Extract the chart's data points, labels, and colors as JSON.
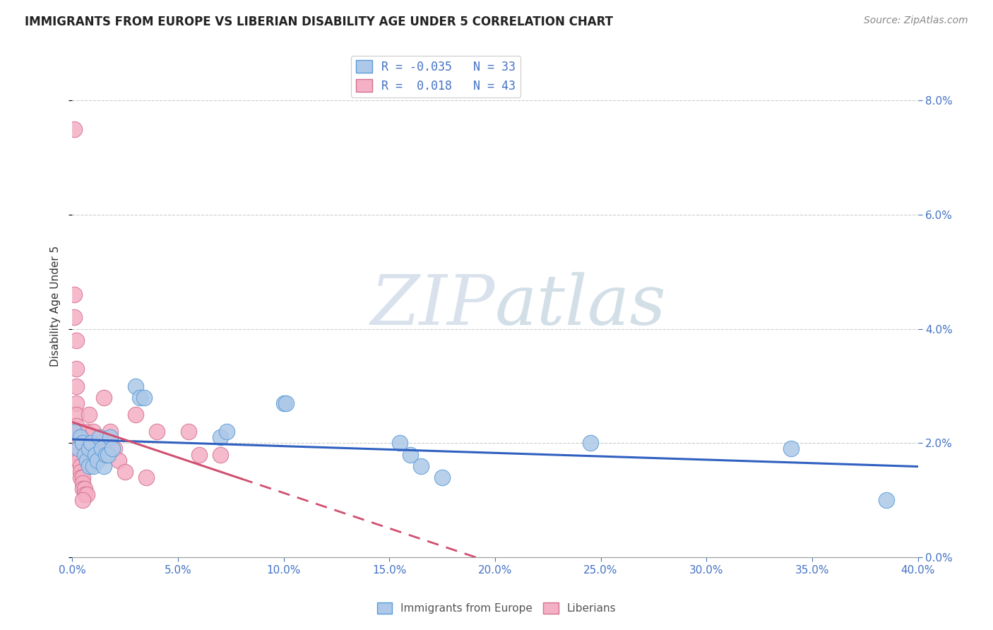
{
  "title": "IMMIGRANTS FROM EUROPE VS LIBERIAN DISABILITY AGE UNDER 5 CORRELATION CHART",
  "source": "Source: ZipAtlas.com",
  "ylabel": "Disability Age Under 5",
  "xlim": [
    0.0,
    0.4
  ],
  "ylim": [
    0.0,
    0.088
  ],
  "R_europe": -0.035,
  "N_europe": 33,
  "R_liberian": 0.018,
  "N_liberian": 43,
  "europe_face_color": "#adc8e8",
  "europe_edge_color": "#5b9bd5",
  "liberian_face_color": "#f4b0c4",
  "liberian_edge_color": "#d47090",
  "europe_line_color": "#3060c0",
  "liberian_line_color": "#d05070",
  "watermark_zip_color": "#c8d8e8",
  "watermark_atlas_color": "#b0c8d8",
  "europe_points": [
    [
      0.001,
      0.022
    ],
    [
      0.003,
      0.019
    ],
    [
      0.004,
      0.021
    ],
    [
      0.005,
      0.02
    ],
    [
      0.006,
      0.018
    ],
    [
      0.007,
      0.017
    ],
    [
      0.008,
      0.016
    ],
    [
      0.008,
      0.019
    ],
    [
      0.009,
      0.02
    ],
    [
      0.01,
      0.016
    ],
    [
      0.011,
      0.018
    ],
    [
      0.012,
      0.017
    ],
    [
      0.013,
      0.021
    ],
    [
      0.014,
      0.019
    ],
    [
      0.015,
      0.016
    ],
    [
      0.016,
      0.018
    ],
    [
      0.017,
      0.018
    ],
    [
      0.018,
      0.021
    ],
    [
      0.019,
      0.019
    ],
    [
      0.03,
      0.03
    ],
    [
      0.032,
      0.028
    ],
    [
      0.034,
      0.028
    ],
    [
      0.07,
      0.021
    ],
    [
      0.073,
      0.022
    ],
    [
      0.1,
      0.027
    ],
    [
      0.101,
      0.027
    ],
    [
      0.155,
      0.02
    ],
    [
      0.16,
      0.018
    ],
    [
      0.165,
      0.016
    ],
    [
      0.175,
      0.014
    ],
    [
      0.245,
      0.02
    ],
    [
      0.34,
      0.019
    ],
    [
      0.385,
      0.01
    ]
  ],
  "liberian_points": [
    [
      0.001,
      0.075
    ],
    [
      0.001,
      0.046
    ],
    [
      0.001,
      0.042
    ],
    [
      0.002,
      0.038
    ],
    [
      0.002,
      0.033
    ],
    [
      0.002,
      0.03
    ],
    [
      0.002,
      0.027
    ],
    [
      0.002,
      0.025
    ],
    [
      0.002,
      0.023
    ],
    [
      0.002,
      0.022
    ],
    [
      0.002,
      0.021
    ],
    [
      0.003,
      0.022
    ],
    [
      0.003,
      0.021
    ],
    [
      0.003,
      0.02
    ],
    [
      0.003,
      0.019
    ],
    [
      0.003,
      0.018
    ],
    [
      0.003,
      0.017
    ],
    [
      0.004,
      0.016
    ],
    [
      0.004,
      0.015
    ],
    [
      0.004,
      0.014
    ],
    [
      0.005,
      0.014
    ],
    [
      0.005,
      0.013
    ],
    [
      0.005,
      0.012
    ],
    [
      0.006,
      0.012
    ],
    [
      0.006,
      0.011
    ],
    [
      0.007,
      0.011
    ],
    [
      0.007,
      0.022
    ],
    [
      0.008,
      0.025
    ],
    [
      0.01,
      0.022
    ],
    [
      0.011,
      0.017
    ],
    [
      0.013,
      0.02
    ],
    [
      0.015,
      0.028
    ],
    [
      0.018,
      0.022
    ],
    [
      0.02,
      0.019
    ],
    [
      0.022,
      0.017
    ],
    [
      0.025,
      0.015
    ],
    [
      0.03,
      0.025
    ],
    [
      0.035,
      0.014
    ],
    [
      0.04,
      0.022
    ],
    [
      0.055,
      0.022
    ],
    [
      0.06,
      0.018
    ],
    [
      0.07,
      0.018
    ],
    [
      0.005,
      0.01
    ]
  ]
}
